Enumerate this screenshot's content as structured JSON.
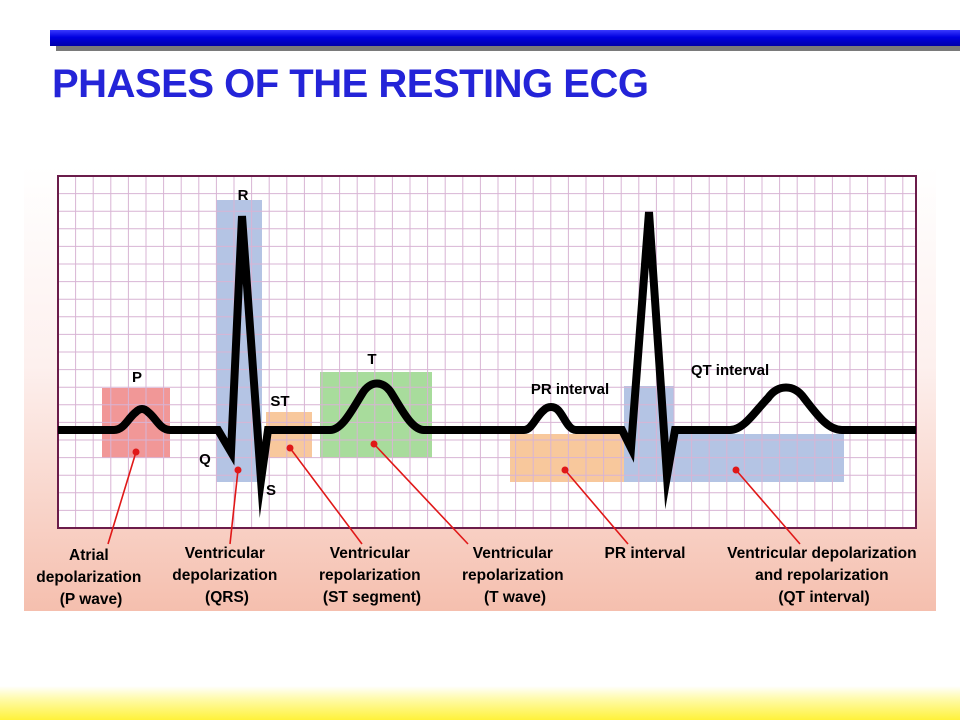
{
  "title": "PHASES OF THE RESTING ECG",
  "colors": {
    "title": "#2424d8",
    "top_bar": "#0000e0",
    "grid_line": "#d8b4d4",
    "grid_border": "#6b1c4a",
    "ecg_trace": "#000000",
    "leader_line": "#e01818",
    "p_wave_box": "#f08c8c",
    "qrs_box": "#b4c4e4",
    "st_box": "#f8c89c",
    "t_wave_box": "#a8dc9c",
    "pr_box": "#f8c89c",
    "qt_box": "#b4c4e4"
  },
  "wave_labels": {
    "p": "P",
    "q": "Q",
    "r": "R",
    "s": "S",
    "st": "ST",
    "t": "T",
    "pr_interval": "PR interval",
    "qt_interval": "QT interval"
  },
  "captions": [
    {
      "lines": [
        "Atrial",
        "depolarization",
        "(P wave)"
      ]
    },
    {
      "lines": [
        "Ventricular",
        "depolarization",
        "(QRS)"
      ]
    },
    {
      "lines": [
        "Ventricular",
        "repolarization",
        "(ST segment)"
      ]
    },
    {
      "lines": [
        "Ventricular",
        "repolarization",
        "(T wave)"
      ]
    },
    {
      "lines": [
        "PR interval"
      ]
    },
    {
      "lines": [
        "Ventricular depolarization",
        "and repolarization",
        "(QT interval)"
      ]
    }
  ]
}
